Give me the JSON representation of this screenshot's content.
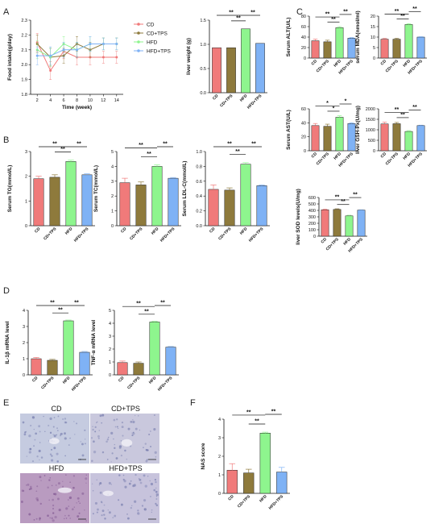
{
  "figure": {
    "panel_letters": [
      "A",
      "B",
      "C",
      "D",
      "E",
      "F"
    ],
    "group_names": [
      "CD",
      "CD+TPS",
      "HFD",
      "HFD+TPS"
    ],
    "group_colors": [
      "#f07a7a",
      "#8e7a3c",
      "#8ef58e",
      "#7fb2f5"
    ],
    "micro_labels": [
      "CD",
      "CD+TPS",
      "HFD",
      "HFD+TPS"
    ],
    "micro_tints": [
      "#c5cbe0",
      "#c9c8dd",
      "#b99bc0",
      "#c7c3dc"
    ]
  },
  "chart_data": [
    {
      "id": "food-intake",
      "type": "line",
      "ylabel": "Food intake(g/day)",
      "xlabel": "Time (week)",
      "x": [
        2,
        4,
        6,
        8,
        10,
        12,
        14
      ],
      "ylim": [
        1.8,
        2.3
      ],
      "yticks": [
        "1.8",
        "1.9",
        "2.0",
        "2.1",
        "2.2",
        "2.3"
      ],
      "series": [
        {
          "name": "CD",
          "values": [
            2.15,
            1.96,
            2.09,
            2.05,
            2.05,
            2.05,
            2.05
          ]
        },
        {
          "name": "CD+TPS",
          "values": [
            2.14,
            2.05,
            2.06,
            2.14,
            2.1,
            2.14,
            2.14
          ]
        },
        {
          "name": "HFD",
          "values": [
            2.1,
            2.05,
            2.14,
            2.1,
            2.14,
            2.14,
            2.14
          ]
        },
        {
          "name": "HFD+TPS",
          "values": [
            2.06,
            2.06,
            2.1,
            2.1,
            2.14,
            2.14,
            2.14
          ]
        }
      ],
      "errors": [
        0.06,
        0.06,
        0.05,
        0.05,
        0.05,
        0.04,
        0.04
      ],
      "legend": "top-right"
    },
    {
      "id": "liver-weight",
      "type": "bar",
      "ylabel": "liver weight (g)",
      "values": [
        0.93,
        0.93,
        1.32,
        1.02
      ],
      "errors": [
        0,
        0,
        0,
        0
      ],
      "ylim": [
        0,
        1.5
      ],
      "yticks": [
        "0.0",
        "0.5",
        "1.0",
        "1.5"
      ],
      "significance": [
        "**",
        "**",
        "**"
      ]
    },
    {
      "id": "serum-tg",
      "type": "bar",
      "ylabel": "Serum TG(mmol/L)",
      "values": [
        1.9,
        1.96,
        2.6,
        2.06
      ],
      "errors": [
        0.1,
        0.1,
        0.05,
        0.04
      ],
      "ylim": [
        0,
        3
      ],
      "yticks": [
        "0",
        "1",
        "2",
        "3"
      ],
      "significance": [
        "**",
        "**",
        "**"
      ]
    },
    {
      "id": "serum-tc",
      "type": "bar",
      "ylabel": "Serum TC(mmol/L)",
      "values": [
        2.9,
        2.75,
        4.0,
        3.2
      ],
      "errors": [
        0.3,
        0.2,
        0.1,
        0.05
      ],
      "ylim": [
        0,
        5
      ],
      "yticks": [
        "0",
        "1",
        "2",
        "3",
        "4",
        "5"
      ],
      "significance": [
        "**",
        "**",
        "**"
      ]
    },
    {
      "id": "serum-ldl",
      "type": "bar",
      "ylabel": "Serum LDL-C(mmol/L)",
      "values": [
        0.49,
        0.48,
        0.83,
        0.54
      ],
      "errors": [
        0.06,
        0.03,
        0.02,
        0.01
      ],
      "ylim": [
        0,
        1.0
      ],
      "yticks": [
        "0.0",
        "0.2",
        "0.4",
        "0.6",
        "0.8",
        "1.0"
      ],
      "significance": [
        "**",
        "**",
        "**"
      ]
    },
    {
      "id": "serum-alt",
      "type": "bar",
      "ylabel": "Serum ALT(U/L)",
      "values": [
        33,
        31,
        58,
        38
      ],
      "errors": [
        3,
        3,
        2,
        1
      ],
      "ylim": [
        0,
        80
      ],
      "yticks": [
        "0",
        "20",
        "40",
        "60",
        "80"
      ],
      "significance": [
        "**",
        "**",
        "**"
      ]
    },
    {
      "id": "serum-mda",
      "type": "bar",
      "ylabel": "serum MDA(nmol/ml)",
      "values": [
        9,
        9,
        16,
        10
      ],
      "errors": [
        0.4,
        0.4,
        0.4,
        0.2
      ],
      "ylim": [
        0,
        20
      ],
      "yticks": [
        "0",
        "5",
        "10",
        "15",
        "20"
      ],
      "significance": [
        "**",
        "**",
        "**"
      ]
    },
    {
      "id": "serum-ast",
      "type": "bar",
      "ylabel": "Serum AST(U/L)",
      "values": [
        36,
        35,
        48,
        39
      ],
      "errors": [
        3,
        3,
        2,
        1
      ],
      "ylim": [
        0,
        60
      ],
      "yticks": [
        "0",
        "20",
        "40",
        "60"
      ],
      "significance": [
        "*",
        "*",
        "*"
      ]
    },
    {
      "id": "liver-gsh-px",
      "type": "bar",
      "ylabel": "liver GSH-Px(U/mg)",
      "values": [
        1280,
        1290,
        920,
        1200
      ],
      "errors": [
        80,
        60,
        40,
        20
      ],
      "ylim": [
        0,
        2000
      ],
      "yticks": [
        "0",
        "500",
        "1000",
        "1500",
        "2000"
      ],
      "significance": [
        "**",
        "**",
        "**"
      ]
    },
    {
      "id": "liver-sod",
      "type": "bar",
      "ylabel": "liver SOD levels(U/mg)",
      "values": [
        410,
        415,
        315,
        405
      ],
      "errors": [
        10,
        10,
        10,
        5
      ],
      "ylim": [
        0,
        600
      ],
      "yticks": [
        "0",
        "100",
        "200",
        "300",
        "400",
        "500",
        "600"
      ],
      "significance": [
        "**",
        "**",
        "**"
      ]
    },
    {
      "id": "il1b-mrna",
      "type": "bar",
      "ylabel": "IL-1β mRNA level",
      "values": [
        1.0,
        0.9,
        3.35,
        1.4
      ],
      "errors": [
        0.08,
        0.06,
        0.05,
        0.05
      ],
      "ylim": [
        0,
        4
      ],
      "yticks": [
        "0",
        "1",
        "2",
        "3",
        "4"
      ],
      "significance": [
        "**",
        "**",
        "**"
      ]
    },
    {
      "id": "tnfa-mrna",
      "type": "bar",
      "ylabel": "TNF-α mRNA level",
      "values": [
        0.95,
        0.9,
        4.1,
        2.15
      ],
      "errors": [
        0.12,
        0.1,
        0.05,
        0.05
      ],
      "ylim": [
        0,
        5
      ],
      "yticks": [
        "0",
        "1",
        "2",
        "3",
        "4",
        "5"
      ],
      "significance": [
        "**",
        "**",
        "**"
      ]
    },
    {
      "id": "nas-score",
      "type": "bar",
      "ylabel": "NAS score",
      "values": [
        1.25,
        1.1,
        3.25,
        1.15
      ],
      "errors": [
        0.35,
        0.2,
        0.05,
        0.25
      ],
      "ylim": [
        0,
        4
      ],
      "yticks": [
        "0",
        "1",
        "2",
        "3",
        "4"
      ],
      "significance": [
        "**",
        "**",
        "**"
      ]
    }
  ]
}
